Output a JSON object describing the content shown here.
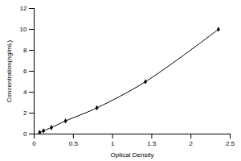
{
  "chart_data": {
    "type": "line",
    "x_label": "Optical Density",
    "y_label": "Concentration(ng/mL)",
    "x": [
      0.07,
      0.12,
      0.22,
      0.4,
      0.8,
      1.42,
      2.35
    ],
    "values": [
      0.156,
      0.312,
      0.625,
      1.25,
      2.5,
      5,
      10
    ],
    "color": "#000000",
    "marker": "diamond",
    "line_style": "solid",
    "xlim": [
      0,
      2.5
    ],
    "xticks": [
      0,
      0.5,
      1,
      1.5,
      2,
      2.5
    ],
    "ylim": [
      0,
      12
    ],
    "yticks": [
      0,
      2,
      4,
      6,
      8,
      10,
      12
    ],
    "grid": false
  }
}
